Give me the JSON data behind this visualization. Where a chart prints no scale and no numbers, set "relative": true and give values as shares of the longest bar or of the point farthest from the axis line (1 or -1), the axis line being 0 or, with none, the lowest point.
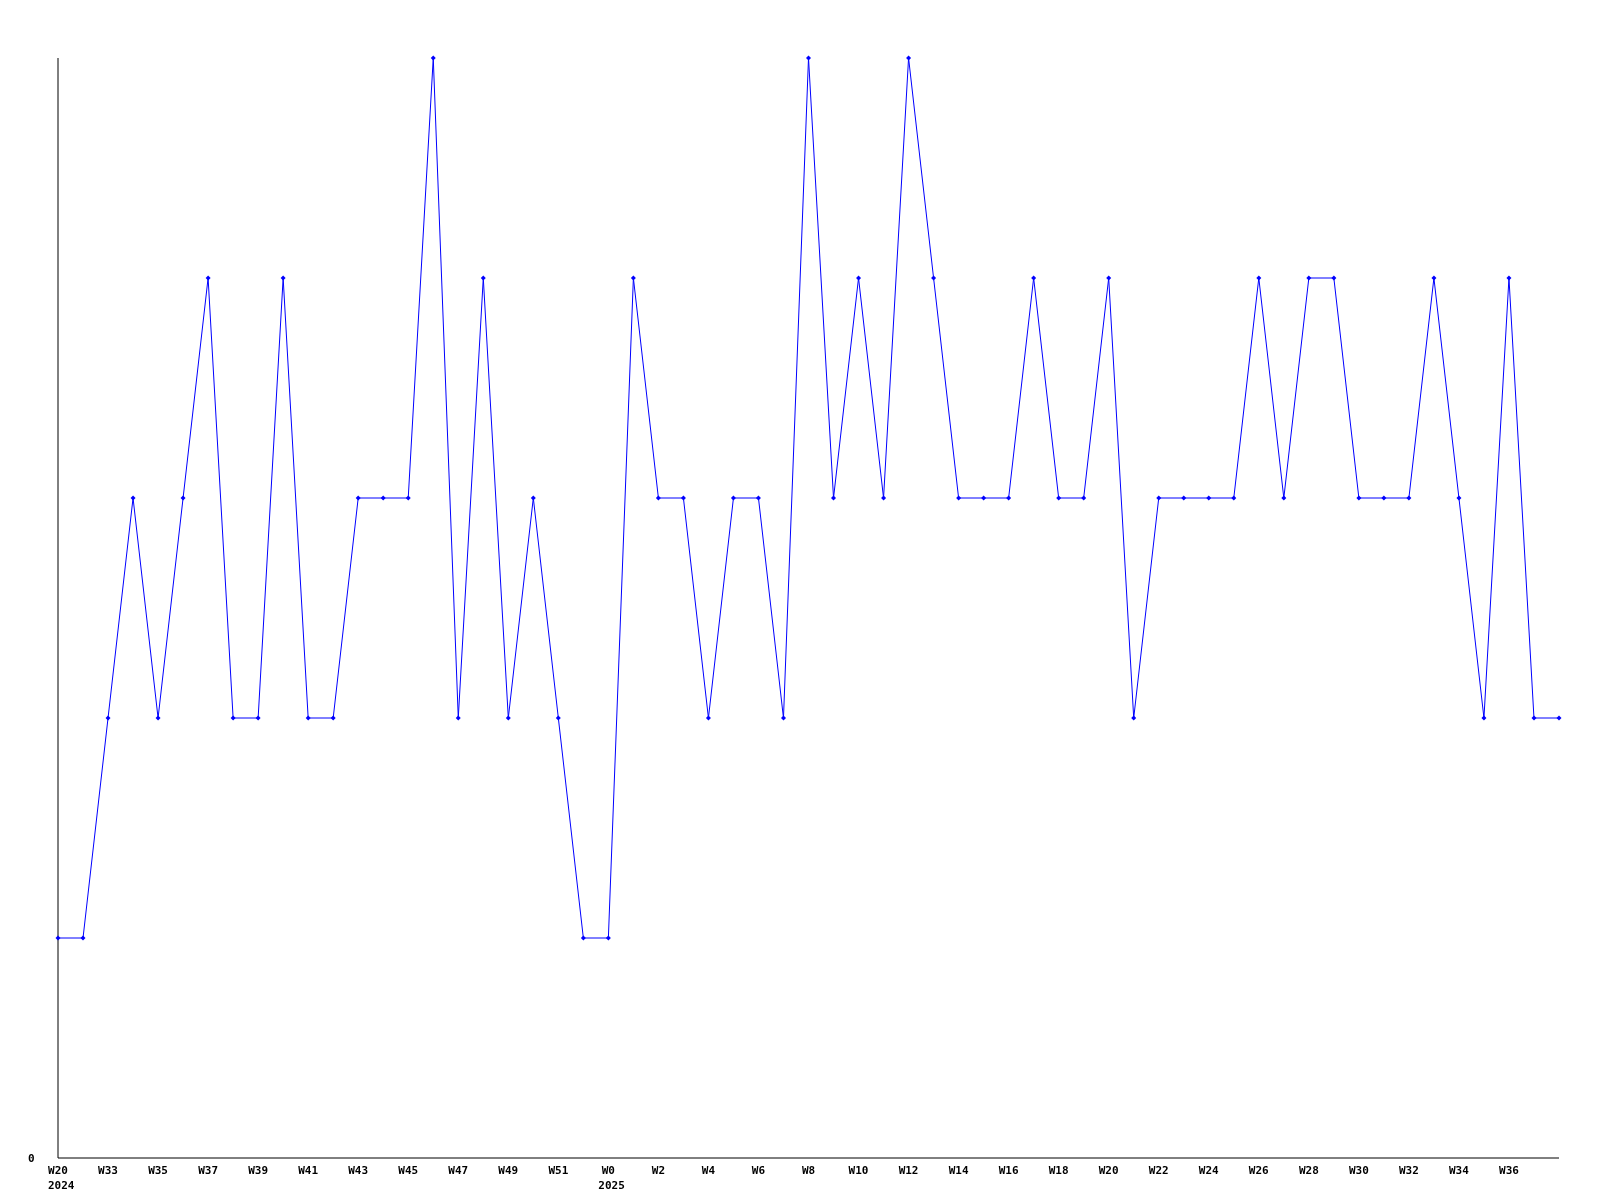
{
  "chart_data": {
    "type": "line",
    "relative": true,
    "marker": "diamond",
    "categories": [
      "W20",
      null,
      "W33",
      null,
      "W35",
      null,
      "W37",
      null,
      "W39",
      null,
      "W41",
      null,
      "W43",
      null,
      "W45",
      null,
      "W47",
      null,
      "W49",
      null,
      "W51",
      null,
      "W0",
      null,
      "W2",
      null,
      "W4",
      null,
      "W6",
      null,
      "W8",
      null,
      "W10",
      null,
      "W12",
      null,
      "W14",
      null,
      "W16",
      null,
      "W18",
      null,
      "W20",
      null,
      "W22",
      null,
      "W24",
      null,
      "W26",
      null,
      "W28",
      null,
      "W30",
      null,
      "W32",
      null,
      "W34",
      null,
      "W36",
      null,
      null
    ],
    "series": [
      {
        "color": "#0000ff",
        "values": [
          0.2,
          0.2,
          0.4,
          0.6,
          0.4,
          0.6,
          0.8,
          0.4,
          0.4,
          0.8,
          0.4,
          0.4,
          0.6,
          0.6,
          0.6,
          1,
          0.4,
          0.8,
          0.4,
          0.6,
          0.4,
          0.2,
          0.2,
          0.8,
          0.6,
          0.6,
          0.4,
          0.6,
          0.6,
          0.4,
          1,
          0.6,
          0.8,
          0.6,
          1,
          0.8,
          0.6,
          0.6,
          0.6,
          0.8,
          0.6,
          0.6,
          0.8,
          0.4,
          0.6,
          0.6,
          0.6,
          0.6,
          0.8,
          0.6,
          0.8,
          0.8,
          0.6,
          0.6,
          0.6,
          0.8,
          0.6,
          0.4,
          0.8,
          0.4,
          0.4
        ]
      }
    ],
    "annotations": [
      "0",
      "2024",
      "2025"
    ]
  }
}
